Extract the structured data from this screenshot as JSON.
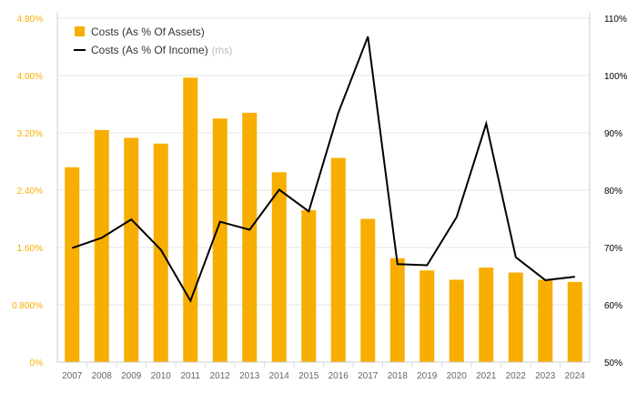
{
  "chart_data": {
    "type": "bar+line",
    "title": "",
    "categories": [
      "2007",
      "2008",
      "2009",
      "2010",
      "2011",
      "2012",
      "2013",
      "2014",
      "2015",
      "2016",
      "2017",
      "2018",
      "2019",
      "2020",
      "2021",
      "2022",
      "2023",
      "2024"
    ],
    "series": [
      {
        "name": "Costs (As % Of Assets)",
        "type": "bar",
        "axis": "left",
        "values": [
          2.72,
          3.24,
          3.13,
          3.05,
          3.97,
          3.4,
          3.48,
          2.65,
          2.12,
          2.85,
          2.0,
          1.45,
          1.28,
          1.15,
          1.32,
          1.25,
          1.15,
          1.12
        ]
      },
      {
        "name": "Costs (As % Of Income)",
        "name_suffix": "(rhs)",
        "type": "line",
        "axis": "right",
        "values": [
          69.9,
          71.7,
          74.9,
          69.6,
          60.7,
          74.5,
          73.1,
          80.1,
          76.3,
          93.5,
          106.8,
          67.1,
          66.9,
          75.3,
          91.6,
          68.3,
          64.3,
          64.9
        ]
      }
    ],
    "y_left": {
      "min": 0,
      "max": 4.8,
      "ticks": [
        0,
        0.8,
        1.6,
        2.4,
        3.2,
        4.0,
        4.8
      ],
      "tick_labels": [
        "0%",
        "0.800%",
        "1.60%",
        "2.40%",
        "3.20%",
        "4.00%",
        "4.80%"
      ]
    },
    "y_right": {
      "min": 50,
      "max": 110,
      "ticks": [
        50,
        60,
        70,
        80,
        90,
        100,
        110
      ],
      "tick_labels": [
        "50%",
        "60%",
        "70%",
        "80%",
        "90%",
        "100%",
        "110%"
      ]
    },
    "grid": true,
    "legend_position": "top-left",
    "colors": {
      "bar": "#F7AE00",
      "line": "#000000",
      "left_axis_text": "#F7AE00",
      "right_axis_text": "#000000",
      "x_axis_text": "#666666",
      "grid": "#E6E6E6",
      "rhs_suffix": "#BBBBBB"
    }
  }
}
